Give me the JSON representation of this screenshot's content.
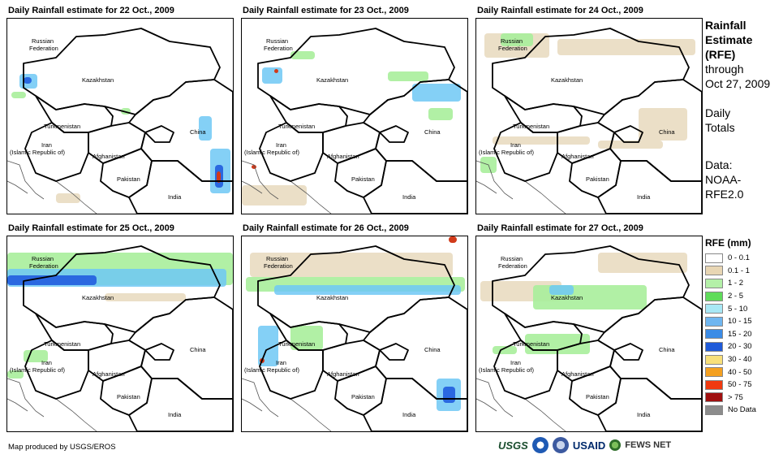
{
  "panels": [
    {
      "title": "Daily Rainfall estimate for 22 Oct., 2009"
    },
    {
      "title": "Daily Rainfall estimate for 23 Oct., 2009"
    },
    {
      "title": "Daily Rainfall estimate for 24 Oct., 2009"
    },
    {
      "title": "Daily Rainfall estimate for 25 Oct., 2009"
    },
    {
      "title": "Daily Rainfall estimate for 26 Oct., 2009"
    },
    {
      "title": "Daily Rainfall estimate for 27 Oct., 2009"
    }
  ],
  "countries": {
    "russia_1": "Russian",
    "russia_2": "Federation",
    "kazakhstan": "Kazakhstan",
    "turkmenistan": "Turkmenistan",
    "iran_1": "Iran",
    "iran_2": "(Islamic Republic of)",
    "afghanistan": "Afghanistan",
    "pakistan": "Pakistan",
    "china": "China",
    "india": "India"
  },
  "sidebar": {
    "line1": "Rainfall",
    "line2": "Estimate",
    "line3": "(RFE)",
    "line4": "through",
    "line5": "Oct 27, 2009",
    "line6": "Daily",
    "line7": "Totals",
    "line8": "Data:",
    "line9": "NOAA-",
    "line10": "RFE2.0"
  },
  "legend": {
    "title": "RFE (mm)",
    "items": [
      {
        "label": "0 - 0.1",
        "color": "#ffffff"
      },
      {
        "label": "0.1 - 1",
        "color": "#e8d6b4"
      },
      {
        "label": "1 - 2",
        "color": "#b4f0a8"
      },
      {
        "label": "2 - 5",
        "color": "#5fdc5a"
      },
      {
        "label": "5 - 10",
        "color": "#a8e8f5"
      },
      {
        "label": "10 - 15",
        "color": "#6fb6f0"
      },
      {
        "label": "15 - 20",
        "color": "#3c8ce6"
      },
      {
        "label": "20 - 30",
        "color": "#1f5ad9"
      },
      {
        "label": "30 - 40",
        "color": "#f8e07a"
      },
      {
        "label": "40 - 50",
        "color": "#f4a020"
      },
      {
        "label": "50 - 75",
        "color": "#f03a10"
      },
      {
        "label": "> 75",
        "color": "#a01010"
      },
      {
        "label": "No Data",
        "color": "#8c8c8c"
      }
    ]
  },
  "footer": {
    "credit": "Map produced by USGS/EROS",
    "logo_usgs": "USGS",
    "logo_usaid": "USAID",
    "logo_fews": "FEWS NET"
  }
}
